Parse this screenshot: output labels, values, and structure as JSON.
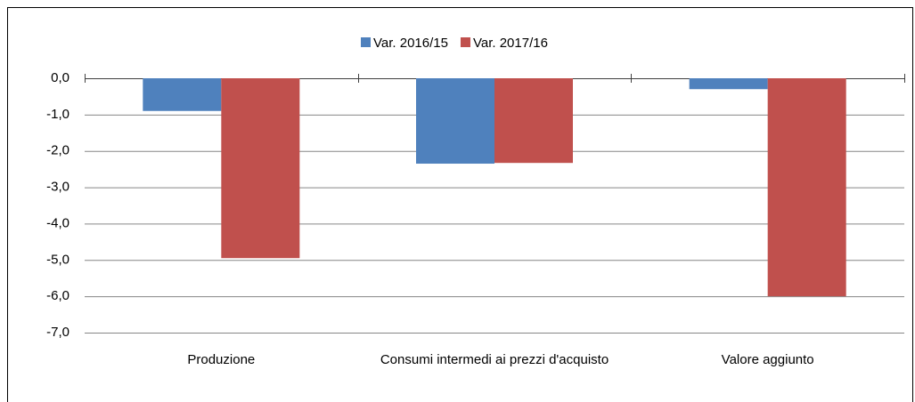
{
  "chart_data": {
    "type": "bar",
    "categories": [
      "Produzione",
      "Consumi intermedi ai prezzi d'acquisto",
      "Valore aggiunto"
    ],
    "series": [
      {
        "name": "Var. 2016/15",
        "color": "#4f81bd",
        "values": [
          -0.9,
          -2.35,
          -0.3
        ]
      },
      {
        "name": "Var. 2017/16",
        "color": "#c0504d",
        "values": [
          -4.95,
          -2.33,
          -6.0
        ]
      }
    ],
    "ylim": [
      -7,
      0
    ],
    "yticks": [
      {
        "value": 0,
        "label": "0,0"
      },
      {
        "value": -1,
        "label": "-1,0"
      },
      {
        "value": -2,
        "label": "-2,0"
      },
      {
        "value": -3,
        "label": "-3,0"
      },
      {
        "value": -4,
        "label": "-4,0"
      },
      {
        "value": -5,
        "label": "-5,0"
      },
      {
        "value": -6,
        "label": "-6,0"
      },
      {
        "value": -7,
        "label": "-7,0"
      }
    ],
    "grid": true,
    "legend": "top"
  }
}
